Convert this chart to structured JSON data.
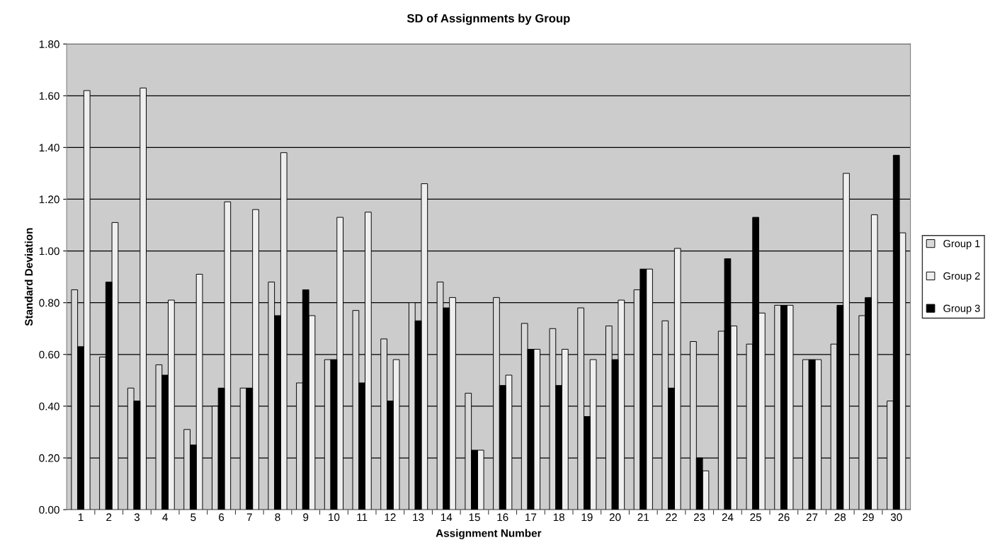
{
  "chart_data": {
    "type": "bar",
    "title": "SD of Assignments by Group",
    "xlabel": "Assignment Number",
    "ylabel": "Standard Deviation",
    "categories": [
      "1",
      "2",
      "3",
      "4",
      "5",
      "6",
      "7",
      "8",
      "9",
      "10",
      "11",
      "12",
      "13",
      "14",
      "15",
      "16",
      "17",
      "18",
      "19",
      "20",
      "21",
      "22",
      "23",
      "24",
      "25",
      "26",
      "27",
      "28",
      "29",
      "30"
    ],
    "series": [
      {
        "name": "Group 1",
        "color": "#d9d9d9",
        "values": [
          0.85,
          0.59,
          0.47,
          0.56,
          0.31,
          0.4,
          0.47,
          0.88,
          0.49,
          0.58,
          0.77,
          0.66,
          0.8,
          0.88,
          0.45,
          0.82,
          0.72,
          0.7,
          0.78,
          0.71,
          0.85,
          0.73,
          0.65,
          0.69,
          0.64,
          0.79,
          0.58,
          0.64,
          0.75,
          0.42
        ]
      },
      {
        "name": "Group 2",
        "color": "#efefef",
        "values": [
          1.62,
          1.11,
          1.63,
          0.81,
          0.91,
          1.19,
          1.16,
          1.38,
          0.75,
          1.13,
          1.15,
          0.58,
          1.26,
          0.82,
          0.23,
          0.52,
          0.62,
          0.62,
          0.58,
          0.81,
          0.93,
          1.01,
          0.15,
          0.71,
          0.76,
          0.79,
          0.58,
          1.3,
          1.14,
          1.07
        ]
      },
      {
        "name": "Group 3",
        "color": "#000000",
        "values": [
          0.63,
          0.88,
          0.42,
          0.52,
          0.25,
          0.47,
          0.47,
          0.75,
          0.85,
          0.58,
          0.49,
          0.42,
          0.73,
          0.78,
          0.23,
          0.48,
          0.62,
          0.48,
          0.36,
          0.58,
          0.93,
          0.47,
          0.2,
          0.97,
          1.13,
          0.79,
          0.58,
          0.79,
          0.82,
          1.37
        ]
      }
    ],
    "ylim": [
      0,
      1.8
    ],
    "yticks": [
      {
        "value": 0,
        "label": "0.00"
      },
      {
        "value": 0.2,
        "label": "0.20"
      },
      {
        "value": 0.4,
        "label": "0.40"
      },
      {
        "value": 0.6,
        "label": "0.60"
      },
      {
        "value": 0.8,
        "label": "0.80"
      },
      {
        "value": 1.0,
        "label": "1.00"
      },
      {
        "value": 1.2,
        "label": "1.20"
      },
      {
        "value": 1.4,
        "label": "1.40"
      },
      {
        "value": 1.6,
        "label": "1.60"
      },
      {
        "value": 1.8,
        "label": "1.80"
      }
    ],
    "grid": "y",
    "legend": "right"
  }
}
